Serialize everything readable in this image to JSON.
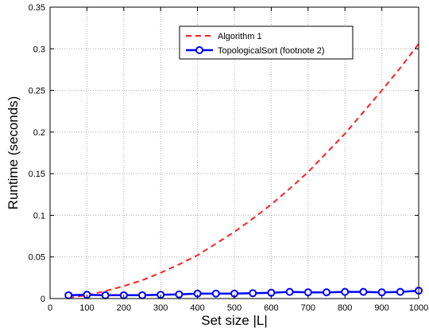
{
  "chart_data": {
    "type": "line",
    "xlabel": "Set size |L|",
    "ylabel": "Runtime (seconds)",
    "xlim": [
      0,
      1000
    ],
    "ylim": [
      0,
      0.35
    ],
    "xticks": [
      0,
      100,
      200,
      300,
      400,
      500,
      600,
      700,
      800,
      900,
      1000
    ],
    "yticks": [
      0,
      0.05,
      0.1,
      0.15,
      0.2,
      0.25,
      0.3,
      0.35
    ],
    "xtick_labels": [
      "0",
      "100",
      "200",
      "300",
      "400",
      "500",
      "600",
      "700",
      "800",
      "900",
      "1000"
    ],
    "ytick_labels": [
      "0",
      "0.05",
      "0.1",
      "0.15",
      "0.2",
      "0.25",
      "0.3",
      "0.35"
    ],
    "grid": true,
    "legend_position": "top-right",
    "series": [
      {
        "name": "Algorithm 1",
        "color": "#ff2020",
        "style": "dashed",
        "marker": "none",
        "x": [
          50,
          100,
          150,
          200,
          250,
          300,
          350,
          400,
          450,
          500,
          550,
          600,
          650,
          700,
          750,
          800,
          850,
          900,
          950,
          1000
        ],
        "y": [
          0.001,
          0.004,
          0.009,
          0.015,
          0.022,
          0.031,
          0.041,
          0.052,
          0.066,
          0.08,
          0.096,
          0.113,
          0.132,
          0.152,
          0.175,
          0.198,
          0.224,
          0.25,
          0.277,
          0.306
        ]
      },
      {
        "name": "TopologicalSort (footnote 2)",
        "color": "#0000ff",
        "style": "solid",
        "marker": "circle",
        "x": [
          50,
          100,
          150,
          200,
          250,
          300,
          350,
          400,
          450,
          500,
          550,
          600,
          650,
          700,
          750,
          800,
          850,
          900,
          950,
          1000
        ],
        "y": [
          0.004,
          0.0045,
          0.004,
          0.004,
          0.004,
          0.0045,
          0.005,
          0.006,
          0.006,
          0.006,
          0.0065,
          0.007,
          0.008,
          0.0075,
          0.0075,
          0.008,
          0.008,
          0.0075,
          0.008,
          0.0095
        ]
      }
    ]
  }
}
